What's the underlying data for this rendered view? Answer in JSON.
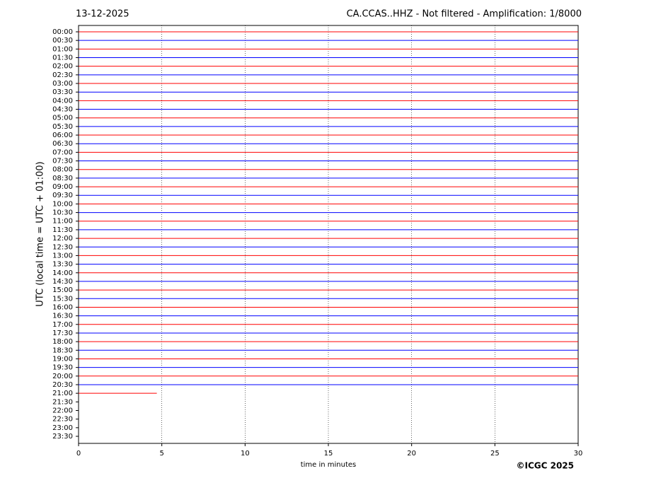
{
  "chart_data": {
    "type": "helicorder",
    "title_left": "13-12-2025",
    "title": "CA.CCAS..HHZ - Not filtered - Amplification: 1/8000",
    "ylabel": "UTC (local time = UTC + 01:00)",
    "xlabel": "time in minutes",
    "credit": "©ICGC 2025",
    "categories": [
      "00:00",
      "00:30",
      "01:00",
      "01:30",
      "02:00",
      "02:30",
      "03:00",
      "03:30",
      "04:00",
      "04:30",
      "05:00",
      "05:30",
      "06:00",
      "06:30",
      "07:00",
      "07:30",
      "08:00",
      "08:30",
      "09:00",
      "09:30",
      "10:00",
      "10:30",
      "11:00",
      "11:30",
      "12:00",
      "12:30",
      "13:00",
      "13:30",
      "14:00",
      "14:30",
      "15:00",
      "15:30",
      "16:00",
      "16:30",
      "17:00",
      "17:30",
      "18:00",
      "18:30",
      "19:00",
      "19:30",
      "20:00",
      "20:30",
      "21:00",
      "21:30",
      "22:00",
      "22:30",
      "23:00",
      "23:30"
    ],
    "values": [
      30,
      30,
      30,
      30,
      30,
      30,
      30,
      30,
      30,
      30,
      30,
      30,
      30,
      30,
      30,
      30,
      30,
      30,
      30,
      30,
      30,
      30,
      30,
      30,
      30,
      30,
      30,
      30,
      30,
      30,
      30,
      30,
      30,
      30,
      30,
      30,
      30,
      30,
      30,
      30,
      30,
      30,
      4.7,
      null,
      null,
      null,
      null,
      null
    ],
    "colors": [
      "#ff0000",
      "#0000ff"
    ],
    "xlim": [
      0,
      30
    ],
    "xticks": [
      0,
      5,
      10,
      15,
      20,
      25,
      30
    ],
    "grid": true
  }
}
